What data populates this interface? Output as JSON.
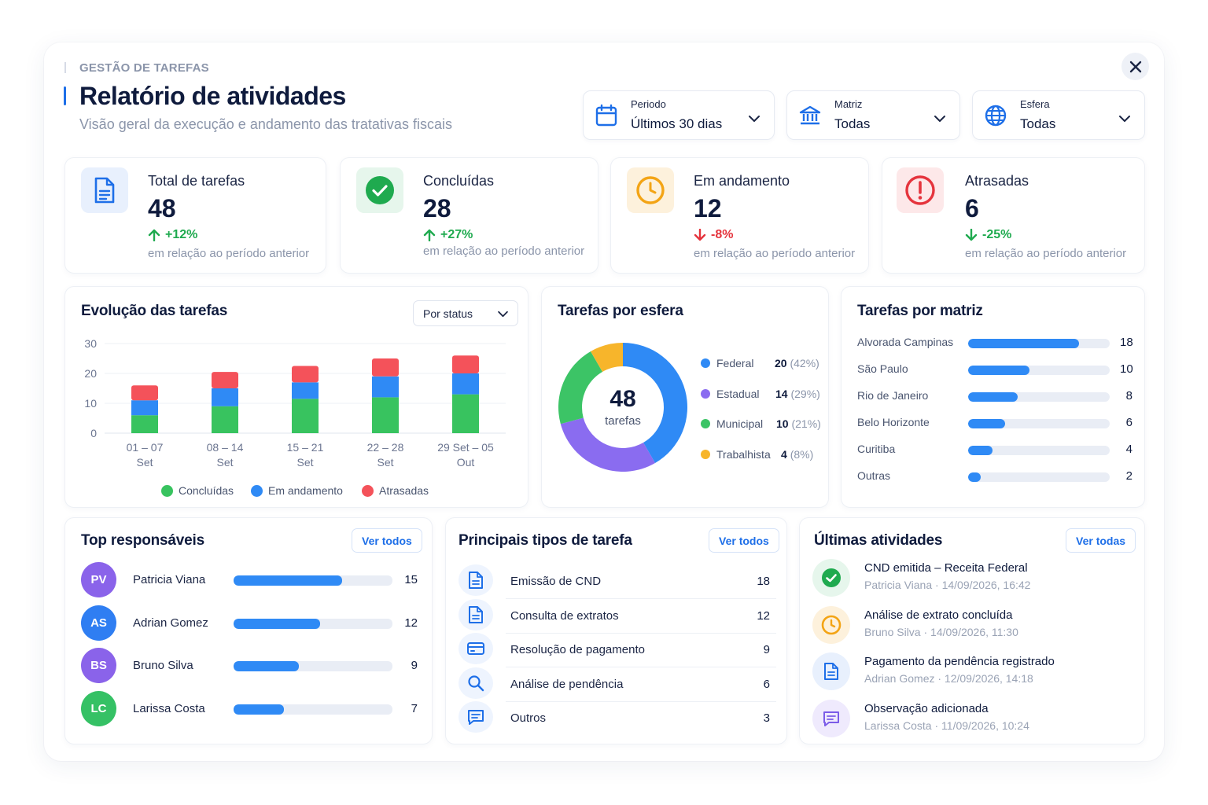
{
  "header": {
    "eyebrow": "GESTÃO DE TAREFAS",
    "title": "Relatório de atividades",
    "subtitle": "Visão geral da execução e andamento das tratativas fiscais"
  },
  "filters": [
    {
      "label": "Periodo",
      "value": "Últimos 30 dias",
      "icon": "calendar-icon"
    },
    {
      "label": "Matriz",
      "value": "Todas",
      "icon": "bank-icon"
    },
    {
      "label": "Esfera",
      "value": "Todas",
      "icon": "globe-icon"
    }
  ],
  "kpis": [
    {
      "label": "Total de tarefas",
      "value": "48",
      "delta": "+12%",
      "note": "em relação ao período anterior",
      "trend": "up",
      "icon": "document-icon",
      "color": "#1e6fe8",
      "bg": "#e8f0fd"
    },
    {
      "label": "Concluídas",
      "value": "28",
      "delta": "+27%",
      "note": "em relação ao período anterior",
      "trend": "up",
      "icon": "check-circle-icon",
      "color": "#1faa4f",
      "bg": "#e6f6ec"
    },
    {
      "label": "Em andamento",
      "value": "12",
      "delta": "-8%",
      "note": "em relação ao período anterior",
      "trend": "down",
      "icon": "clock-icon",
      "color": "#f3a415",
      "bg": "#fdf1dc"
    },
    {
      "label": "Atrasadas",
      "value": "6",
      "delta": "-25%",
      "note": "em relação ao período anterior",
      "trend": "down-good",
      "icon": "alert-icon",
      "color": "#e5343d",
      "bg": "#fde8e9"
    }
  ],
  "evolucao": {
    "title": "Evolução das tarefas",
    "select_value": "Por status",
    "chart_data": {
      "type": "bar",
      "stacked": true,
      "categories": [
        [
          "01 – 07",
          "Set"
        ],
        [
          "08 – 14",
          "Set"
        ],
        [
          "15 – 21",
          "Set"
        ],
        [
          "22 – 28",
          "Set"
        ],
        [
          "29 Set – 05",
          "Out"
        ]
      ],
      "series": [
        {
          "name": "Concluídas",
          "color": "#38c35f",
          "values": [
            6,
            9,
            11.5,
            12,
            13
          ]
        },
        {
          "name": "Em andamento",
          "color": "#2f8af5",
          "values": [
            5,
            6,
            5.5,
            7,
            7
          ]
        },
        {
          "name": "Atrasadas",
          "color": "#f4525a",
          "values": [
            5,
            5.5,
            5.5,
            6,
            6
          ]
        }
      ],
      "yticks": [
        0,
        10,
        20,
        30
      ],
      "ylim": [
        0,
        30
      ],
      "grid": true,
      "legend_position": "bottom"
    }
  },
  "esfera": {
    "title": "Tarefas por esfera",
    "center_value": "48",
    "center_label": "tarefas",
    "chart_data": {
      "type": "pie",
      "donut": true,
      "slices": [
        {
          "name": "Federal",
          "value": 20,
          "pct": "(42%)",
          "color": "#2f8af5"
        },
        {
          "name": "Estadual",
          "value": 14,
          "pct": "(29%)",
          "color": "#8a6cf0"
        },
        {
          "name": "Municipal",
          "value": 10,
          "pct": "(21%)",
          "color": "#3cc466"
        },
        {
          "name": "Trabalhista",
          "value": 4,
          "pct": "(8%)",
          "color": "#f7b52b"
        }
      ]
    }
  },
  "matriz": {
    "title": "Tarefas por matriz",
    "max": 23,
    "rows": [
      {
        "name": "Alvorada Campinas",
        "value": 18
      },
      {
        "name": "São Paulo",
        "value": 10
      },
      {
        "name": "Rio de Janeiro",
        "value": 8
      },
      {
        "name": "Belo Horizonte",
        "value": 6
      },
      {
        "name": "Curitiba",
        "value": 4
      },
      {
        "name": "Outras",
        "value": 2
      }
    ]
  },
  "responsaveis": {
    "title": "Top responsáveis",
    "button": "Ver todos",
    "max": 22,
    "rows": [
      {
        "initials": "PV",
        "name": "Patricia Viana",
        "value": 15,
        "color": "#8a63ea"
      },
      {
        "initials": "AS",
        "name": "Adrian Gomez",
        "value": 12,
        "color": "#2f7ef2"
      },
      {
        "initials": "BS",
        "name": "Bruno Silva",
        "value": 9,
        "color": "#8a63ea"
      },
      {
        "initials": "LC",
        "name": "Larissa Costa",
        "value": 7,
        "color": "#35c165"
      }
    ]
  },
  "tipos": {
    "title": "Principais tipos de tarefa",
    "button": "Ver todos",
    "rows": [
      {
        "name": "Emissão de CND",
        "value": "18",
        "icon": "document-icon"
      },
      {
        "name": "Consulta de extratos",
        "value": "12",
        "icon": "document-icon"
      },
      {
        "name": "Resolução de pagamento",
        "value": "9",
        "icon": "credit-card-icon"
      },
      {
        "name": "Análise de pendência",
        "value": "6",
        "icon": "search-icon"
      },
      {
        "name": "Outros",
        "value": "3",
        "icon": "note-icon"
      }
    ]
  },
  "atividades": {
    "title": "Últimas atividades",
    "button": "Ver todas",
    "rows": [
      {
        "title": "CND emitida – Receita Federal",
        "sub": "Patricia Viana · 14/09/2026, 16:42",
        "icon": "check-circle-icon",
        "color": "#1faa4f",
        "bg": "#e6f6ec"
      },
      {
        "title": "Análise de extrato concluída",
        "sub": "Bruno Silva · 14/09/2026, 11:30",
        "icon": "clock-icon",
        "color": "#f3a415",
        "bg": "#fdf1dc"
      },
      {
        "title": "Pagamento da pendência registrado",
        "sub": "Adrian Gomez · 12/09/2026, 14:18",
        "icon": "document-icon",
        "color": "#1e6fe8",
        "bg": "#e8f0fd"
      },
      {
        "title": "Observação adicionada",
        "sub": "Larissa Costa · 11/09/2026, 10:24",
        "icon": "note-icon",
        "color": "#7b5ce8",
        "bg": "#efeafd"
      }
    ]
  }
}
